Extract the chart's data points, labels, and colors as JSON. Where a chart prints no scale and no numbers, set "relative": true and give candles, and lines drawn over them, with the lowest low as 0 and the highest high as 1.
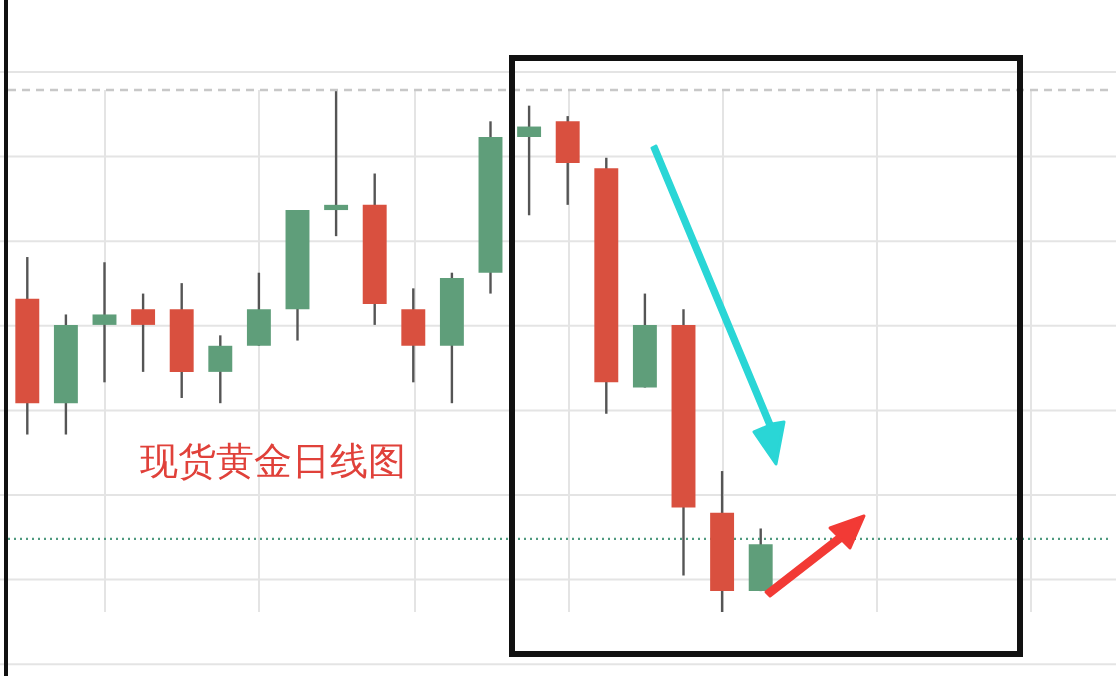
{
  "chart_data": {
    "type": "candlestick",
    "title": "现货黄金日线图",
    "relative": true,
    "grid": true,
    "tick_labels": false,
    "categories": [
      null,
      null,
      null,
      null,
      null,
      null,
      null,
      null,
      null,
      null,
      null,
      null,
      null,
      null,
      null,
      null,
      null,
      null,
      null,
      null
    ],
    "ohlc": [
      [
        0.6,
        0.68,
        0.34,
        0.4
      ],
      [
        0.4,
        0.57,
        0.34,
        0.55
      ],
      [
        0.55,
        0.67,
        0.44,
        0.57
      ],
      [
        0.58,
        0.61,
        0.46,
        0.55
      ],
      [
        0.58,
        0.63,
        0.41,
        0.46
      ],
      [
        0.46,
        0.53,
        0.4,
        0.51
      ],
      [
        0.51,
        0.65,
        0.51,
        0.58
      ],
      [
        0.58,
        0.77,
        0.52,
        0.77
      ],
      [
        0.77,
        1,
        0.72,
        0.78
      ],
      [
        0.78,
        0.84,
        0.55,
        0.59
      ],
      [
        0.58,
        0.62,
        0.44,
        0.51
      ],
      [
        0.51,
        0.65,
        0.4,
        0.64
      ],
      [
        0.65,
        0.94,
        0.61,
        0.91
      ],
      [
        0.91,
        0.97,
        0.76,
        0.93
      ],
      [
        0.94,
        0.95,
        0.78,
        0.86
      ],
      [
        0.85,
        0.87,
        0.38,
        0.44
      ],
      [
        0.43,
        0.61,
        0.43,
        0.55
      ],
      [
        0.55,
        0.58,
        0.07,
        0.2
      ],
      [
        0.19,
        0.27,
        0,
        0.04
      ],
      [
        0.04,
        0.16,
        0.04,
        0.13
      ]
    ],
    "colors": [
      "#d9503f",
      "#5f9e7a",
      "#5f9e7a",
      "#d9503f",
      "#d9503f",
      "#5f9e7a",
      "#5f9e7a",
      "#5f9e7a",
      "#5f9e7a",
      "#d9503f",
      "#d9503f",
      "#5f9e7a",
      "#5f9e7a",
      "#5f9e7a",
      "#d9503f",
      "#d9503f",
      "#5f9e7a",
      "#d9503f",
      "#d9503f",
      "#5f9e7a"
    ],
    "ref_lines": [
      {
        "axis": "y",
        "value": 1,
        "line_style": "dashed",
        "color": "#c8c8c8"
      },
      {
        "axis": "y",
        "value": 0.14,
        "line_style": "dotted",
        "color": "#4f9a7f"
      }
    ]
  }
}
